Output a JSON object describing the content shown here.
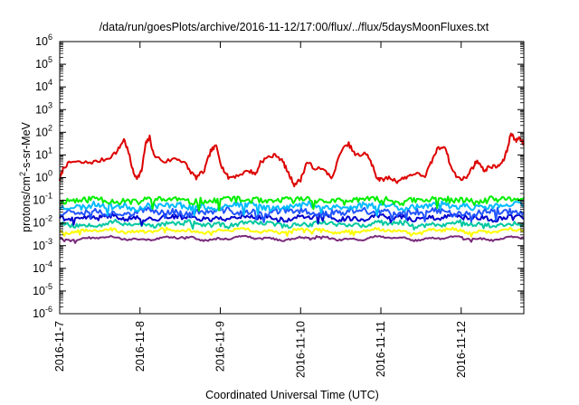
{
  "chart_data": {
    "type": "line",
    "title": "/data/run/goesPlots/archive/2016-11-12/17:00/flux/../flux/5daysMoonFluxes.txt",
    "xlabel": "Coordinated Universal Time (UTC)",
    "ylabel": {
      "prefix": "protons/cm",
      "sup": "2",
      "suffix": "-s-sr-MeV"
    },
    "x_ticks": [
      "2016-11-7",
      "2016-11-8",
      "2016-11-9",
      "2016-11-10",
      "2016-11-11",
      "2016-11-12"
    ],
    "x_range_days": [
      0,
      5.78
    ],
    "y_scale": "log",
    "y_range_exp": [
      -6,
      6
    ],
    "y_ticks": [
      {
        "base": "10",
        "exp": "-6"
      },
      {
        "base": "10",
        "exp": "-5"
      },
      {
        "base": "10",
        "exp": "-4"
      },
      {
        "base": "10",
        "exp": "-3"
      },
      {
        "base": "10",
        "exp": "-2"
      },
      {
        "base": "10",
        "exp": "-1"
      },
      {
        "base": "10",
        "exp": "0"
      },
      {
        "base": "10",
        "exp": "1"
      },
      {
        "base": "10",
        "exp": "2"
      },
      {
        "base": "10",
        "exp": "3"
      },
      {
        "base": "10",
        "exp": "4"
      },
      {
        "base": "10",
        "exp": "5"
      },
      {
        "base": "10",
        "exp": "6"
      }
    ],
    "series": [
      {
        "color": "#dd0000",
        "style": "spiky",
        "points": [
          [
            0.0,
            0.8
          ],
          [
            0.05,
            3
          ],
          [
            0.15,
            5
          ],
          [
            0.3,
            4.5
          ],
          [
            0.45,
            5
          ],
          [
            0.6,
            7
          ],
          [
            0.72,
            15
          ],
          [
            0.8,
            50
          ],
          [
            0.86,
            12
          ],
          [
            0.92,
            1.5
          ],
          [
            0.97,
            1
          ],
          [
            1.02,
            2
          ],
          [
            1.07,
            30
          ],
          [
            1.12,
            60
          ],
          [
            1.17,
            10
          ],
          [
            1.3,
            5
          ],
          [
            1.45,
            7
          ],
          [
            1.55,
            5
          ],
          [
            1.62,
            2
          ],
          [
            1.7,
            1
          ],
          [
            1.8,
            2
          ],
          [
            1.88,
            15
          ],
          [
            1.95,
            25
          ],
          [
            2.02,
            3
          ],
          [
            2.1,
            1
          ],
          [
            2.2,
            1.2
          ],
          [
            2.35,
            2
          ],
          [
            2.45,
            1.5
          ],
          [
            2.5,
            5
          ],
          [
            2.6,
            8
          ],
          [
            2.7,
            10
          ],
          [
            2.78,
            5
          ],
          [
            2.85,
            1.5
          ],
          [
            2.92,
            0.5
          ],
          [
            3.0,
            0.8
          ],
          [
            3.08,
            5
          ],
          [
            3.15,
            3
          ],
          [
            3.3,
            2
          ],
          [
            3.4,
            1
          ],
          [
            3.5,
            15
          ],
          [
            3.6,
            30
          ],
          [
            3.68,
            10
          ],
          [
            3.75,
            10
          ],
          [
            3.82,
            12
          ],
          [
            3.9,
            3
          ],
          [
            3.95,
            1
          ],
          [
            4.0,
            0.8
          ],
          [
            4.1,
            1
          ],
          [
            4.2,
            0.7
          ],
          [
            4.3,
            1
          ],
          [
            4.4,
            1.5
          ],
          [
            4.55,
            1.2
          ],
          [
            4.62,
            4
          ],
          [
            4.7,
            18
          ],
          [
            4.8,
            25
          ],
          [
            4.87,
            3
          ],
          [
            4.95,
            1
          ],
          [
            5.05,
            0.9
          ],
          [
            5.15,
            3
          ],
          [
            5.2,
            6
          ],
          [
            5.28,
            2
          ],
          [
            5.35,
            3
          ],
          [
            5.45,
            3
          ],
          [
            5.52,
            5
          ],
          [
            5.58,
            20
          ],
          [
            5.62,
            100
          ],
          [
            5.68,
            40
          ],
          [
            5.72,
            60
          ],
          [
            5.76,
            40
          ],
          [
            5.78,
            30
          ]
        ]
      },
      {
        "color": "#00ee00",
        "style": "noise",
        "level": 0.1,
        "amp": 0.28,
        "seed": 11
      },
      {
        "color": "#00bbff",
        "style": "noise",
        "level": 0.055,
        "amp": 0.28,
        "seed": 23
      },
      {
        "color": "#2255ff",
        "style": "noise",
        "level": 0.03,
        "amp": 0.28,
        "seed": 37
      },
      {
        "color": "#0000cc",
        "style": "noise",
        "level": 0.017,
        "amp": 0.22,
        "seed": 41
      },
      {
        "color": "#00c8a0",
        "style": "noise",
        "level": 0.009,
        "amp": 0.2,
        "seed": 53
      },
      {
        "color": "#ffff00",
        "style": "noise",
        "level": 0.0045,
        "amp": 0.12,
        "seed": 67
      },
      {
        "color": "#7a2a7a",
        "style": "noise",
        "level": 0.0021,
        "amp": 0.08,
        "seed": 79
      }
    ],
    "grid": false,
    "legend": "none"
  }
}
